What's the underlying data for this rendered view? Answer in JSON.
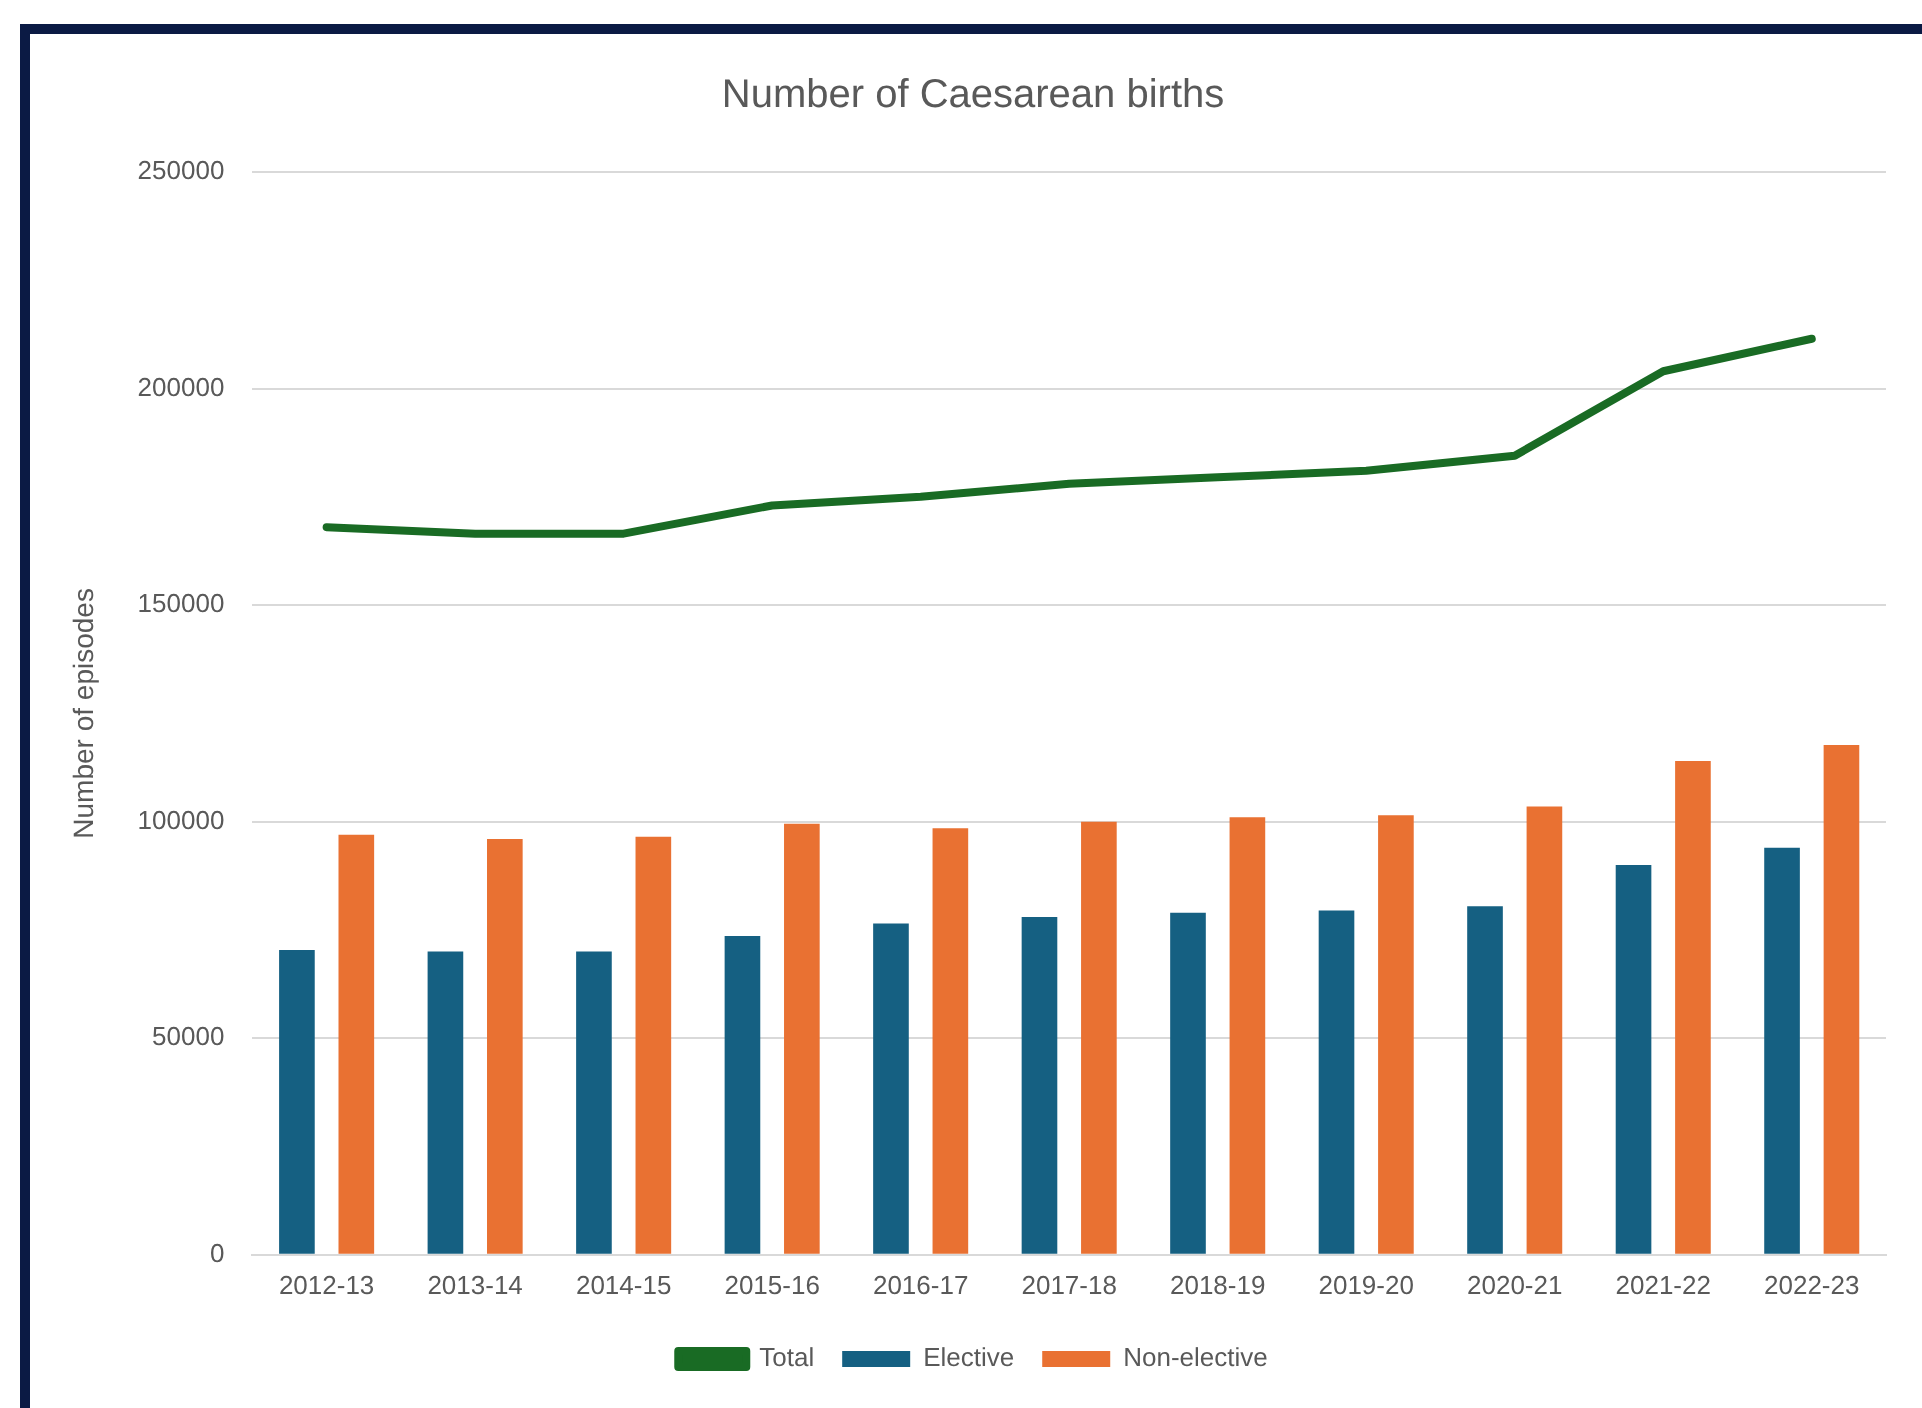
{
  "chart_data": {
    "type": "bar",
    "title": "Number of Caesarean births",
    "ylabel": "Number of episodes",
    "categories": [
      "2012-13",
      "2013-14",
      "2014-15",
      "2015-16",
      "2016-17",
      "2017-18",
      "2018-19",
      "2019-20",
      "2020-21",
      "2021-22",
      "2022-23"
    ],
    "series": [
      {
        "name": "Elective",
        "color": "#156082",
        "values": [
          70400,
          70000,
          70000,
          73600,
          76500,
          78000,
          79000,
          79500,
          80500,
          90000,
          94000
        ]
      },
      {
        "name": "Non-elective",
        "color": "#e97132",
        "values": [
          97000,
          96000,
          96500,
          99500,
          98500,
          100000,
          101000,
          101500,
          103500,
          114000,
          117700
        ]
      },
      {
        "name": "Total",
        "type": "line",
        "color": "#196b24",
        "values": [
          168000,
          166500,
          166500,
          173000,
          175000,
          178000,
          179500,
          181000,
          184500,
          204000,
          211500
        ]
      }
    ],
    "ylim": [
      0,
      250000
    ],
    "yticks": [
      0,
      50000,
      100000,
      150000,
      200000,
      250000
    ],
    "grid": "y",
    "legend": "bottom",
    "marker": "none"
  }
}
